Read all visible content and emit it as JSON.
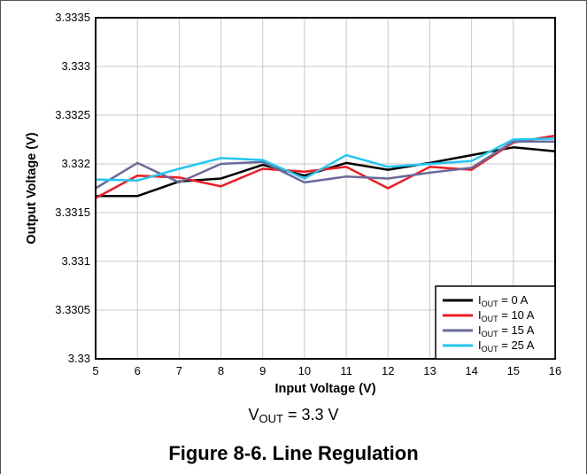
{
  "chart_data": {
    "type": "line",
    "title": "",
    "xlabel": "Input Voltage (V)",
    "ylabel": "Output Voltage (V)",
    "xlim": [
      5,
      16
    ],
    "ylim": [
      3.33,
      3.3335
    ],
    "x_ticks": [
      "5",
      "6",
      "7",
      "8",
      "9",
      "10",
      "11",
      "12",
      "13",
      "14",
      "15",
      "16"
    ],
    "y_ticks": [
      "3.33",
      "3.3305",
      "3.331",
      "3.3315",
      "3.332",
      "3.3325",
      "3.333",
      "3.3335"
    ],
    "grid": true,
    "legend_position": "bottom-right",
    "series": [
      {
        "name": "I_OUT = 0 A",
        "label_main": "I",
        "label_sub": "OUT",
        "label_rest": " = 0 A",
        "color": "#000000",
        "x": [
          5,
          6,
          7,
          8,
          9,
          10,
          11,
          12,
          13,
          14,
          15,
          16
        ],
        "values": [
          3.33167,
          3.33167,
          3.33182,
          3.33185,
          3.33199,
          3.33188,
          3.33201,
          3.33194,
          3.33201,
          3.33209,
          3.33217,
          3.33213
        ]
      },
      {
        "name": "I_OUT = 10 A",
        "label_main": "I",
        "label_sub": "OUT",
        "label_rest": " = 10 A",
        "color": "#ee1c25",
        "x": [
          5,
          6,
          7,
          8,
          9,
          10,
          11,
          12,
          13,
          14,
          15,
          16
        ],
        "values": [
          3.33165,
          3.33188,
          3.33186,
          3.33177,
          3.33195,
          3.33192,
          3.33197,
          3.33175,
          3.33197,
          3.33194,
          3.33222,
          3.33229
        ]
      },
      {
        "name": "I_OUT = 15 A",
        "label_main": "I",
        "label_sub": "OUT",
        "label_rest": " = 15 A",
        "color": "#6a6a9a",
        "x": [
          5,
          6,
          7,
          8,
          9,
          10,
          11,
          12,
          13,
          14,
          15,
          16
        ],
        "values": [
          3.33175,
          3.33201,
          3.33181,
          3.332,
          3.33202,
          3.33181,
          3.33187,
          3.33185,
          3.33191,
          3.33196,
          3.33223,
          3.33223
        ]
      },
      {
        "name": "I_OUT = 25 A",
        "label_main": "I",
        "label_sub": "OUT",
        "label_rest": " = 25 A",
        "color": "#22c6f0",
        "x": [
          5,
          6,
          7,
          8,
          9,
          10,
          11,
          12,
          13,
          14,
          15,
          16
        ],
        "values": [
          3.33184,
          3.33183,
          3.33195,
          3.33206,
          3.33204,
          3.33185,
          3.33209,
          3.33197,
          3.332,
          3.33203,
          3.33225,
          3.33226
        ]
      }
    ]
  },
  "condition": {
    "main": "V",
    "sub": "OUT",
    "rest": " = 3.3 V"
  },
  "figure_caption": "Figure 8-6. Line Regulation"
}
